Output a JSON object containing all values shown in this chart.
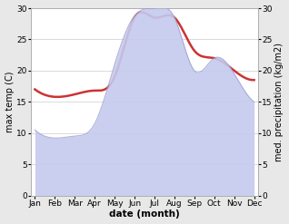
{
  "months": [
    "Jan",
    "Feb",
    "Mar",
    "Apr",
    "May",
    "Jun",
    "Jul",
    "Aug",
    "Sep",
    "Oct",
    "Nov",
    "Dec"
  ],
  "x": [
    0,
    1,
    2,
    3,
    4,
    5,
    6,
    7,
    8,
    9,
    10,
    11
  ],
  "temp": [
    17.0,
    15.8,
    16.2,
    16.8,
    19.0,
    28.5,
    28.5,
    28.5,
    23.2,
    22.0,
    20.0,
    18.5
  ],
  "precip": [
    10.5,
    9.2,
    9.5,
    11.5,
    21.0,
    28.8,
    30.0,
    28.5,
    20.0,
    22.0,
    19.5,
    15.0
  ],
  "temp_color": "#cc3333",
  "precip_fill_color": "#c5caee",
  "precip_line_color": "#9aa0d0",
  "ylim": [
    0,
    30
  ],
  "xlabel": "date (month)",
  "ylabel_left": "max temp (C)",
  "ylabel_right": "med. precipitation (kg/m2)",
  "bg_color": "#e8e8e8",
  "plot_bg_color": "#ffffff",
  "grid_color": "#cccccc",
  "temp_linewidth": 1.8,
  "ylabel_fontsize": 7,
  "xlabel_fontsize": 7.5,
  "tick_fontsize": 6.5,
  "ytick_values": [
    0,
    5,
    10,
    15,
    20,
    25,
    30
  ]
}
